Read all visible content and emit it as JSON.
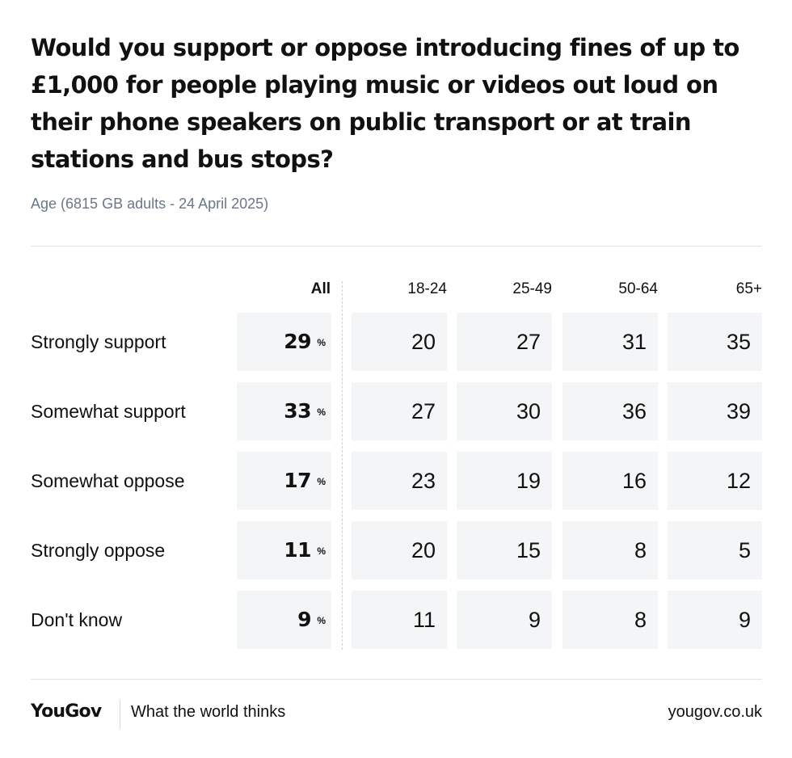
{
  "title": "Would you support or oppose introducing fines of up to £1,000 for people playing music or videos out loud on their phone speakers on public transport or at train stations and bus stops?",
  "subtitle": "Age (6815 GB adults - 24 April 2025)",
  "footer": {
    "logo": "YouGov",
    "tagline": "What the world thinks",
    "url": "yougov.co.uk"
  },
  "chart_data": {
    "type": "table",
    "columns": [
      "All",
      "18-24",
      "25-49",
      "50-64",
      "65+"
    ],
    "unit_symbol": "%",
    "rows": [
      {
        "label": "Strongly support",
        "values": [
          29,
          20,
          27,
          31,
          35
        ]
      },
      {
        "label": "Somewhat support",
        "values": [
          33,
          27,
          30,
          36,
          39
        ]
      },
      {
        "label": "Somewhat oppose",
        "values": [
          17,
          23,
          19,
          16,
          12
        ]
      },
      {
        "label": "Strongly oppose",
        "values": [
          11,
          20,
          15,
          8,
          5
        ]
      },
      {
        "label": "Don't know",
        "values": [
          9,
          11,
          9,
          8,
          9
        ]
      }
    ]
  }
}
